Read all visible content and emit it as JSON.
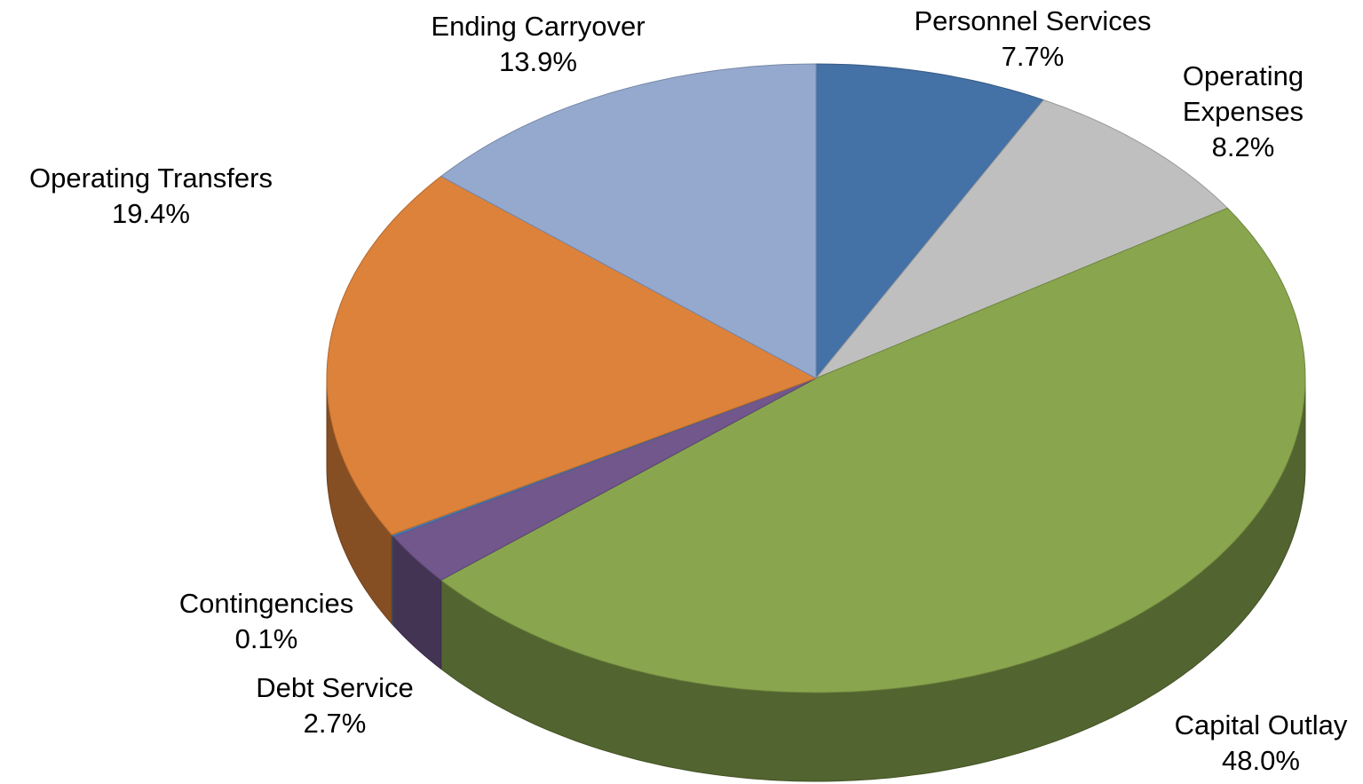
{
  "chart_data": {
    "type": "pie",
    "categories": [
      "Personnel Services",
      "Operating Expenses",
      "Capital Outlay",
      "Debt Service",
      "Contingencies",
      "Operating Transfers",
      "Ending Carryover"
    ],
    "values": [
      7.7,
      8.2,
      48.0,
      2.7,
      0.1,
      19.4,
      13.9
    ],
    "value_labels": [
      "7.7%",
      "8.2%",
      "48.0%",
      "2.7%",
      "0.1%",
      "19.4%",
      "13.9%"
    ],
    "colors": [
      "#4471a6",
      "#bfbfbf",
      "#89a64e",
      "#71578c",
      "#4f7fb8",
      "#dd823b",
      "#95a9cf"
    ]
  }
}
